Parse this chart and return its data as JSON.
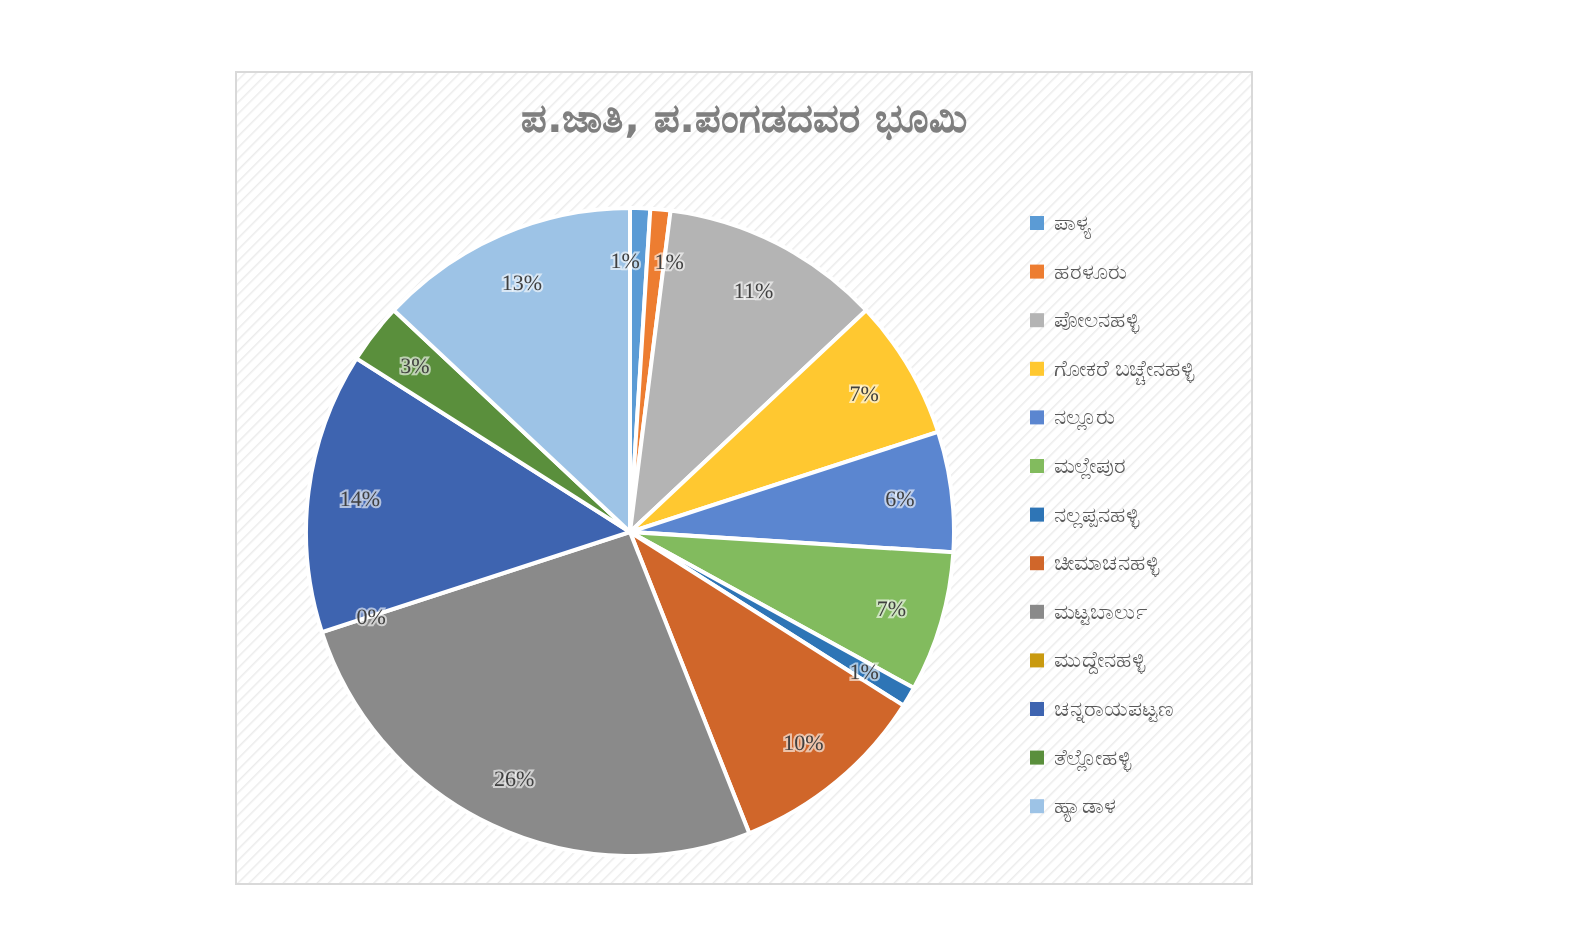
{
  "chart_data": {
    "type": "pie",
    "title": "ಪ.ಜಾತಿ, ಪ.ಪಂಗಡದವರ ಭೂಮಿ",
    "categories": [
      "ಪಾಳ್ಯ",
      "ಹರಳೂರು",
      "ಪೋಲನಹಳ್ಳಿ",
      "ಗೋಕರೆ ಬಚ್ಚೇನಹಳ್ಳಿ",
      "ನಲ್ಲೂರು",
      "ಮಲ್ಲೇಪುರ",
      "ನಲ್ಲಪ್ಪನಹಳ್ಳಿ",
      "ಚೀಮಾಚನಹಳ್ಳಿ",
      "ಮಟ್ಟಬಾರ್ಲು",
      "ಮುದ್ದೇನಹಳ್ಳಿ",
      "ಚನ್ನರಾಯಪಟ್ಟಣ",
      "ತೆಲ್ಲೋಹಳ್ಳಿ",
      "ಹ್ಯಾಡಾಳ"
    ],
    "values": [
      1,
      1,
      11,
      7,
      6,
      7,
      1,
      10,
      26,
      0,
      14,
      3,
      13
    ],
    "colors": [
      "#5b9bd5",
      "#ed7d31",
      "#b4b4b4",
      "#ffc830",
      "#5b86d0",
      "#82bb5e",
      "#2e75b6",
      "#d0662a",
      "#8a8a8a",
      "#c99a10",
      "#3e64b0",
      "#5a8f3c",
      "#9dc3e6"
    ],
    "value_labels": [
      "1%",
      "1%",
      "11%",
      "7%",
      "6%",
      "7%",
      "1%",
      "10%",
      "26%",
      "0%",
      "14%",
      "3%",
      "13%"
    ],
    "legend": "right"
  }
}
